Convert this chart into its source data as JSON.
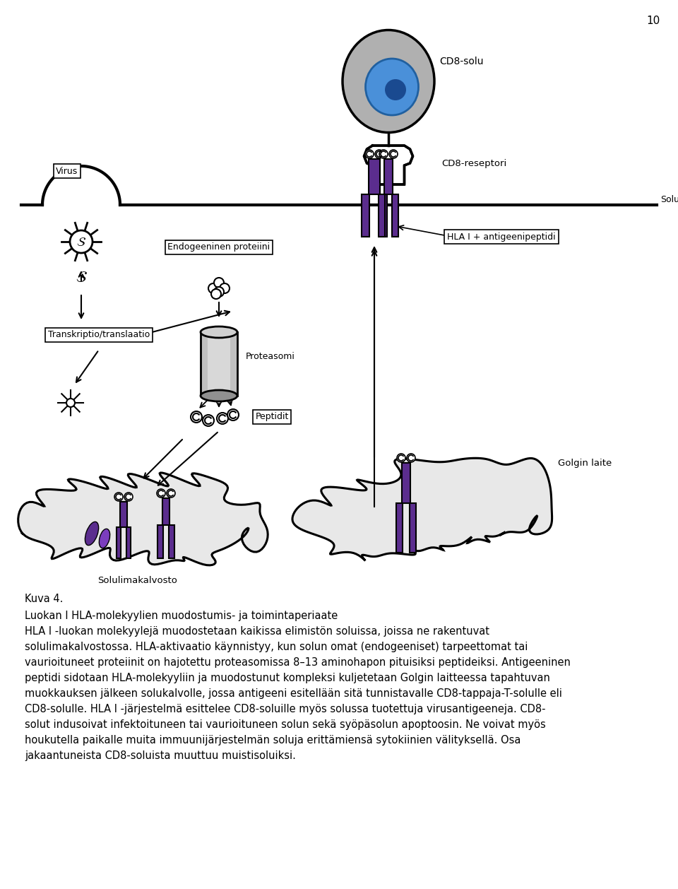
{
  "page_number": "10",
  "figure_title": "Kuva 4.",
  "description_lines": [
    "Luokan I HLA-molekyylien muodostumis- ja toimintaperiaate",
    "HLA I -luokan molekyylejä muodostetaan kaikissa elimistön soluissa, joissa ne rakentuvat",
    "solulimakalvostossa. HLA-aktivaatio käynnistyy, kun solun omat (endogeeniset) tarpeettomat tai",
    "vaurioituneet proteiinit on hajotettu proteasomissa 8–13 aminohapon pituisiksi peptideiksi. Antigeeninen",
    "peptidi sidotaan HLA-molekyyliin ja muodostunut kompleksi kuljetetaan Golgin laitteessa tapahtuvan",
    "muokkauksen jälkeen solukalvolle, jossa antigeeni esitellään sitä tunnistavalle CD8-tappaja-T-solulle eli",
    "CD8-solulle. HLA I -järjestelmä esittelee CD8-soluille myös solussa tuotettuja virusantigeeneja. CD8-",
    "solut indusoivat infektoituneen tai vaurioituneen solun sekä syöpäsolun apoptoosin. Ne voivat myös",
    "houkutella paikalle muita immuunijärjestelmän soluja erittämiensä sytokiinien välityksellä. Osa",
    "jakaantuneista CD8-soluista muuttuu muistisoluiksi."
  ],
  "labels": {
    "virus": "Virus",
    "endogeeninen": "Endogeeninen proteiini",
    "transkriptio": "Transkriptio/translaatio",
    "proteasomi": "Proteasomi",
    "peptidit": "Peptidit",
    "golgin_laite": "Golgin laite",
    "solulimakalvosto": "Solulimakalvosto",
    "solukalvo": "Solukalvo",
    "hla": "HLA I + antigeenipeptidi",
    "cd8_solu": "CD8-solu",
    "cd8_reseptori": "CD8-reseptori"
  },
  "colors": {
    "purple": "#5B2D8E",
    "gray_cell": "#B0B0B0",
    "blue_nucleus": "#4A90D9",
    "light_gray": "#C0C0C0",
    "mid_gray": "#A8A8A8",
    "black": "#000000",
    "white": "#FFFFFF",
    "bg": "#FFFFFF",
    "light_blob": "#E8E8E8"
  }
}
